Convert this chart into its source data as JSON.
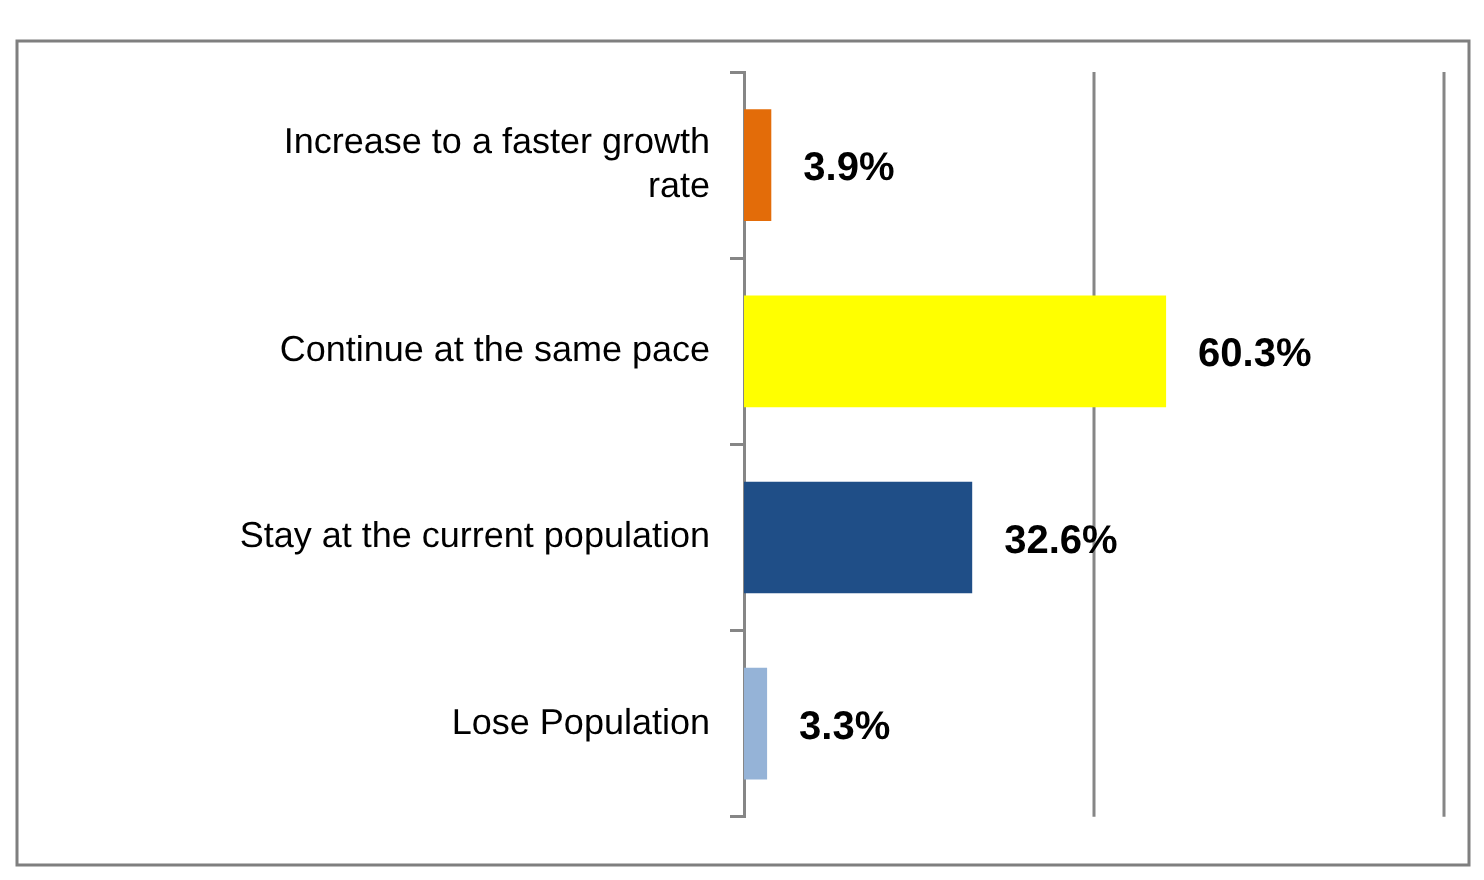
{
  "chart_data": {
    "type": "bar",
    "orientation": "horizontal",
    "categories": [
      "Increase to a faster growth rate",
      "Continue at the same pace",
      "Stay at the current population",
      "Lose Population"
    ],
    "values": [
      3.9,
      60.3,
      32.6,
      3.3
    ],
    "value_labels": [
      "3.9%",
      "60.3%",
      "32.6%",
      "3.3%"
    ],
    "colors": [
      "#e36c09",
      "#ffff00",
      "#1f4e87",
      "#95b3d7"
    ],
    "xlim": [
      0,
      100
    ],
    "ref_lines": [
      {
        "axis": "x",
        "value": 50,
        "color": "#868686"
      },
      {
        "axis": "x",
        "value": 100,
        "color": "#868686"
      }
    ],
    "tick_labels": "y",
    "legend": false
  }
}
